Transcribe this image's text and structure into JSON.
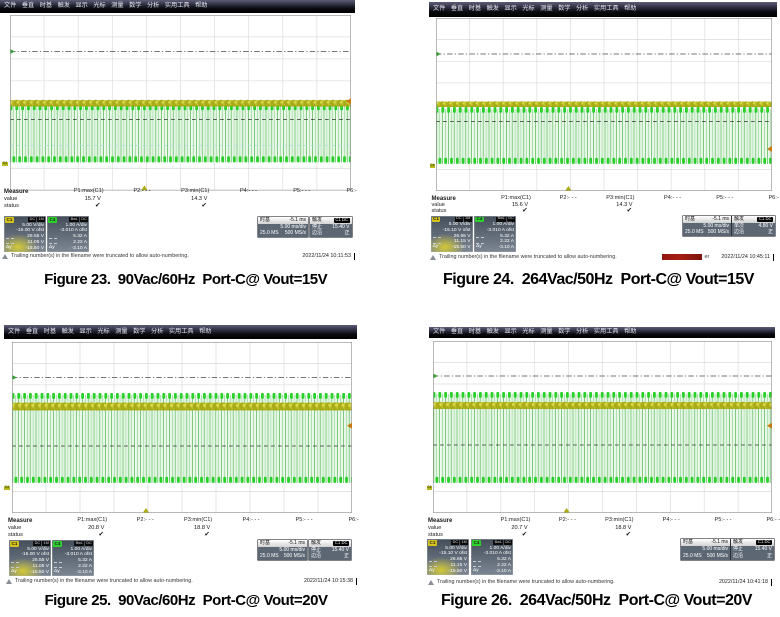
{
  "document": {
    "background": "#ffffff"
  },
  "scope_ui": {
    "menu_items": [
      "文件",
      "垂直",
      "时基",
      "触发",
      "显示",
      "光标",
      "测量",
      "数学",
      "分析",
      "实用工具",
      "帮助"
    ],
    "measure_row_labels": [
      "Measure",
      "value",
      "status"
    ]
  },
  "colors": {
    "trace_c1": "#a9ab17",
    "trace_c4": "#2bd22b",
    "caption_text": "#000000",
    "redaction": "#8e1710"
  },
  "scopes": [
    {
      "caption": "Figure 23.  90Vac/60Hz  Port-C@ Vout=15V",
      "measurements": [
        {
          "label": "P1:max(C1)",
          "value": "15.7 V",
          "status": "✔"
        },
        {
          "label": "P2:- - -",
          "value": "",
          "status": ""
        },
        {
          "label": "P3:min(C1)",
          "value": "14.3 V",
          "status": "✔"
        },
        {
          "label": "P4:- - -",
          "value": "",
          "status": ""
        },
        {
          "label": "P5:- - -",
          "value": "",
          "status": ""
        },
        {
          "label": "P6:- - -",
          "value": "",
          "status": ""
        }
      ],
      "channel_c1": {
        "label": "C1",
        "coupling": "DC 1M",
        "rows": [
          "5.00 V/div",
          "-15.00 V ofst",
          "26.55 V",
          "11.05 V"
        ],
        "delta_label": "Δy",
        "delta": "-15.50 V"
      },
      "channel_c4": {
        "label": "C4",
        "coupling": "BwL DC",
        "rows": [
          "1.00 A/div",
          "-3.010 A ofst",
          "5.32 A",
          "2.22 A"
        ],
        "delta_label": "Δy",
        "delta": "-3.10 A"
      },
      "timebase": {
        "label": "时基",
        "delay": "-5.1 ms",
        "per_div": "5.00 ms/div",
        "samples": "25.0 MS",
        "rate": "500 MS/s"
      },
      "trigger": {
        "label": "触发",
        "source": "C1 DC",
        "mode": "停止",
        "level": "15.40 V",
        "kind": "边沿",
        "slope": "正"
      },
      "status_message": "Trailing number(s) in the filename were truncated to allow auto-numbering.",
      "timestamp": "2022/11/24 10:11:53",
      "ground_marker": "C4"
    },
    {
      "caption": "Figure 24.  264Vac/50Hz  Port-C@ Vout=15V",
      "measurements": [
        {
          "label": "P1:max(C1)",
          "value": "15.6 V",
          "status": "✔"
        },
        {
          "label": "P2:- - -",
          "value": "",
          "status": ""
        },
        {
          "label": "P3:min(C1)",
          "value": "14.3 V",
          "status": "✔"
        },
        {
          "label": "P4:- - -",
          "value": "",
          "status": ""
        },
        {
          "label": "P5:- - -",
          "value": "",
          "status": ""
        },
        {
          "label": "P6:- - -",
          "value": "",
          "status": ""
        }
      ],
      "channel_c1": {
        "label": "C1",
        "coupling": "DC 1M",
        "rows": [
          "5.00 V/div",
          "-15.10 V ofst",
          "26.65 V",
          "11.15 V"
        ],
        "delta_label": "Δy",
        "delta": "-15.50 V"
      },
      "channel_c4": {
        "label": "C4",
        "coupling": "BwL DC",
        "rows": [
          "1.00 A/div",
          "-3.010 A ofst",
          "5.32 A",
          "2.22 A"
        ],
        "delta_label": "Δy",
        "delta": "-3.10 A"
      },
      "timebase": {
        "label": "时基",
        "delay": "-5.1 ms",
        "per_div": "5.00 ms/div",
        "samples": "25.0 MS",
        "rate": "500 MS/s"
      },
      "trigger": {
        "label": "触发",
        "source": "C1 DC",
        "mode": "单次",
        "level": "4.80 V",
        "kind": "边沿",
        "slope": "正"
      },
      "status_message": "Trailing number(s) in the filename were truncated to allow auto-numbering.",
      "redacted_suffix": "er",
      "timestamp": "2022/11/24 10:45:11",
      "ground_marker": "C4"
    },
    {
      "caption": "Figure 25.  90Vac/60Hz  Port-C@ Vout=20V",
      "measurements": [
        {
          "label": "P1:max(C1)",
          "value": "20.8 V",
          "status": "✔"
        },
        {
          "label": "P2:- - -",
          "value": "",
          "status": ""
        },
        {
          "label": "P3:min(C1)",
          "value": "18.8 V",
          "status": "✔"
        },
        {
          "label": "P4:- - -",
          "value": "",
          "status": ""
        },
        {
          "label": "P5:- - -",
          "value": "",
          "status": ""
        },
        {
          "label": "P6:- - -",
          "value": "",
          "status": ""
        }
      ],
      "channel_c1": {
        "label": "C1",
        "coupling": "DC 1M",
        "rows": [
          "5.00 V/div",
          "-15.00 V ofst",
          "26.55 V",
          "11.05 V"
        ],
        "delta_label": "Δy",
        "delta": "-15.50 V"
      },
      "channel_c4": {
        "label": "C4",
        "coupling": "BwL DC",
        "rows": [
          "1.00 A/div",
          "-3.010 A ofst",
          "5.32 A",
          "2.22 A"
        ],
        "delta_label": "Δy",
        "delta": "-3.10 A"
      },
      "timebase": {
        "label": "时基",
        "delay": "-5.1 ms",
        "per_div": "5.00 ms/div",
        "samples": "25.0 MS",
        "rate": "500 MS/s"
      },
      "trigger": {
        "label": "触发",
        "source": "C1 DC",
        "mode": "停止",
        "level": "15.40 V",
        "kind": "边沿",
        "slope": "正"
      },
      "status_message": "Trailing number(s) in the filename were truncated to allow auto-numbering.",
      "timestamp": "2022/11/24 10:15:38",
      "ground_marker": "C4"
    },
    {
      "caption": "Figure 26.  264Vac/50Hz  Port-C@ Vout=20V",
      "measurements": [
        {
          "label": "P1:max(C1)",
          "value": "20.7 V",
          "status": "✔"
        },
        {
          "label": "P2:- - -",
          "value": "",
          "status": ""
        },
        {
          "label": "P3:min(C1)",
          "value": "18.8 V",
          "status": "✔"
        },
        {
          "label": "P4:- - -",
          "value": "",
          "status": ""
        },
        {
          "label": "P5:- - -",
          "value": "",
          "status": ""
        },
        {
          "label": "P6:- - -",
          "value": "",
          "status": ""
        }
      ],
      "channel_c1": {
        "label": "C1",
        "coupling": "DC 1M",
        "rows": [
          "5.00 V/div",
          "-15.10 V ofst",
          "26.65 V",
          "11.15 V"
        ],
        "delta_label": "Δy",
        "delta": "-15.50 V"
      },
      "channel_c4": {
        "label": "C4",
        "coupling": "BwL DC",
        "rows": [
          "1.00 A/div",
          "-3.010 A ofst",
          "5.32 A",
          "2.22 A"
        ],
        "delta_label": "Δy",
        "delta": "-3.10 A"
      },
      "timebase": {
        "label": "时基",
        "delay": "-5.1 ms",
        "per_div": "5.00 ms/div",
        "samples": "25.0 MS",
        "rate": "500 MS/s"
      },
      "trigger": {
        "label": "触发",
        "source": "C1 DC",
        "mode": "停止",
        "level": "15.40 V",
        "kind": "边沿",
        "slope": "正"
      },
      "status_message": "Trailing number(s) in the filename were truncated to allow auto-numbering.",
      "timestamp": "2022/11/24 10:41:18",
      "ground_marker": "C4"
    }
  ]
}
